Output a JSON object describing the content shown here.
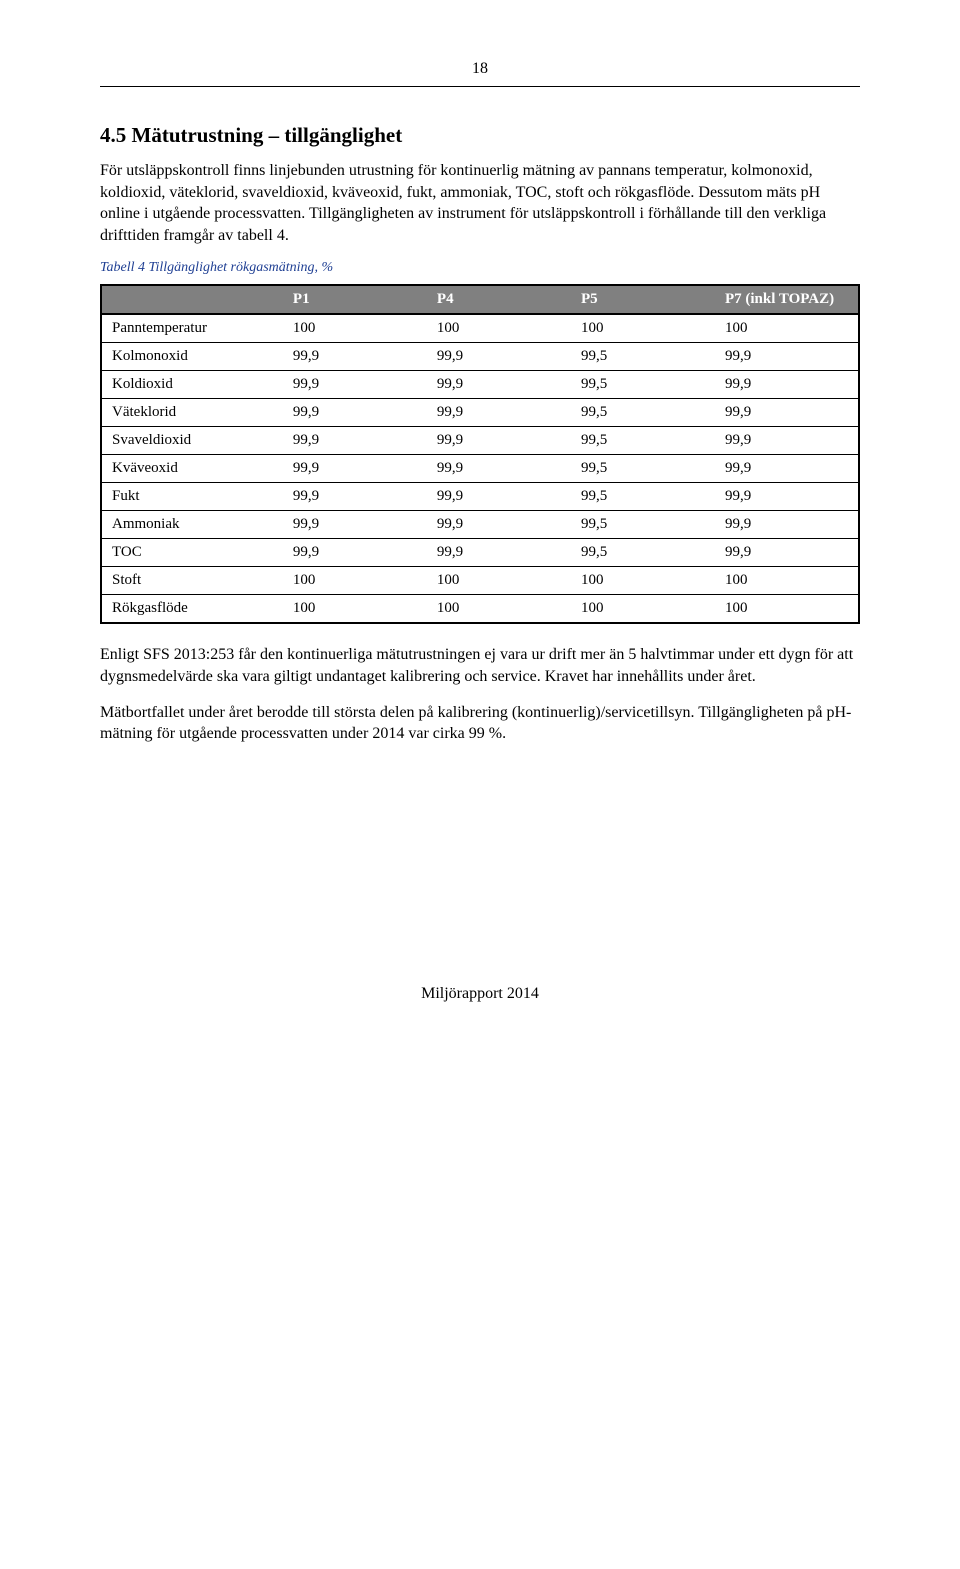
{
  "page_number": "18",
  "heading": "4.5 Mätutrustning – tillgänglighet",
  "para1": "För utsläppskontroll finns linjebunden utrustning för kontinuerlig mätning av pannans temperatur, kolmonoxid, koldioxid, väteklorid, svaveldioxid, kväveoxid, fukt, ammoniak, TOC, stoft och rökgasflöde. Dessutom mäts pH online i utgående processvatten. Tillgängligheten av instrument för utsläppskontroll i förhållande till den verkliga drifttiden framgår av tabell 4.",
  "table": {
    "caption": "Tabell 4 Tillgänglighet rökgasmätning, %",
    "caption_color": "#1f3f93",
    "header_bg": "#808080",
    "header_fg": "#ffffff",
    "columns": [
      "",
      "P1",
      "P4",
      "P5",
      "P7 (inkl TOPAZ)"
    ],
    "rows": [
      [
        "Panntemperatur",
        "100",
        "100",
        "100",
        "100"
      ],
      [
        "Kolmonoxid",
        "99,9",
        "99,9",
        "99,5",
        "99,9"
      ],
      [
        "Koldioxid",
        "99,9",
        "99,9",
        "99,5",
        "99,9"
      ],
      [
        "Väteklorid",
        "99,9",
        "99,9",
        "99,5",
        "99,9"
      ],
      [
        "Svaveldioxid",
        "99,9",
        "99,9",
        "99,5",
        "99,9"
      ],
      [
        "Kväveoxid",
        "99,9",
        "99,9",
        "99,5",
        "99,9"
      ],
      [
        "Fukt",
        "99,9",
        "99,9",
        "99,5",
        "99,9"
      ],
      [
        "Ammoniak",
        "99,9",
        "99,9",
        "99,5",
        "99,9"
      ],
      [
        "TOC",
        "99,9",
        "99,9",
        "99,5",
        "99,9"
      ],
      [
        "Stoft",
        "100",
        "100",
        "100",
        "100"
      ],
      [
        "Rökgasflöde",
        "100",
        "100",
        "100",
        "100"
      ]
    ]
  },
  "para2": "Enligt SFS 2013:253 får den kontinuerliga mätutrustningen ej vara ur drift mer än 5 halvtimmar under ett dygn för att dygnsmedelvärde ska vara giltigt undantaget kalibrering och service. Kravet har innehållits under året.",
  "para3": "Mätbortfallet under året berodde till största delen på kalibrering (kontinuerlig)/servicetillsyn. Tillgängligheten på pH-mätning för utgående processvatten under 2014 var cirka 99 %.",
  "footer": "Miljörapport 2014"
}
